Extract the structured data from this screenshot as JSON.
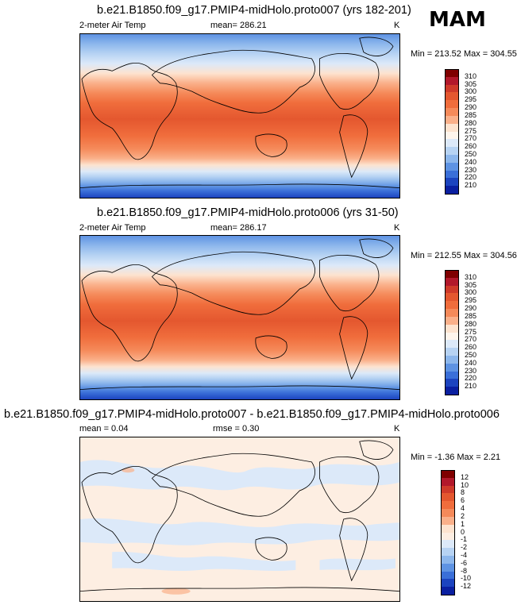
{
  "season": "MAM",
  "chart_data": [
    {
      "type": "heatmap",
      "title": "b.e21.B1850.f09_g17.PMIP4-midHolo.proto007 (yrs 182-201)",
      "variable_label": "2-meter Air Temp",
      "mean_label": "mean= 286.21",
      "units": "K",
      "minmax_label": "Min = 213.52 Max = 304.55",
      "min": 213.52,
      "max": 304.55,
      "colorbar_levels": [
        "310",
        "305",
        "300",
        "295",
        "290",
        "285",
        "280",
        "275",
        "270",
        "260",
        "250",
        "240",
        "230",
        "220",
        "210"
      ],
      "colorbar_colors": [
        "#7f0000",
        "#b2182b",
        "#cf3a2a",
        "#e4572f",
        "#f06d3c",
        "#f58a5a",
        "#fab08a",
        "#fde3cf",
        "#fef5ec",
        "#dce9f9",
        "#b7d3f3",
        "#8db7ec",
        "#5e93e3",
        "#3a6fd8",
        "#1c44bf",
        "#0a1fa0"
      ]
    },
    {
      "type": "heatmap",
      "title": "b.e21.B1850.f09_g17.PMIP4-midHolo.proto006 (yrs 31-50)",
      "variable_label": "2-meter Air Temp",
      "mean_label": "mean= 286.17",
      "units": "K",
      "minmax_label": "Min = 212.55 Max = 304.56",
      "min": 212.55,
      "max": 304.56,
      "colorbar_levels": [
        "310",
        "305",
        "300",
        "295",
        "290",
        "285",
        "280",
        "275",
        "270",
        "260",
        "250",
        "240",
        "230",
        "220",
        "210"
      ],
      "colorbar_colors": [
        "#7f0000",
        "#b2182b",
        "#cf3a2a",
        "#e4572f",
        "#f06d3c",
        "#f58a5a",
        "#fab08a",
        "#fde3cf",
        "#fef5ec",
        "#dce9f9",
        "#b7d3f3",
        "#8db7ec",
        "#5e93e3",
        "#3a6fd8",
        "#1c44bf",
        "#0a1fa0"
      ]
    },
    {
      "type": "heatmap",
      "title": "b.e21.B1850.f09_g17.PMIP4-midHolo.proto007 - b.e21.B1850.f09_g17.PMIP4-midHolo.proto006",
      "mean_label": "mean =   0.04",
      "rmse_label": "rmse =   0.30",
      "units": "K",
      "minmax_label": "Min =  -1.36 Max =   2.21",
      "mean": 0.04,
      "rmse": 0.3,
      "min": -1.36,
      "max": 2.21,
      "colorbar_levels": [
        "12",
        "10",
        "8",
        "6",
        "4",
        "2",
        "1",
        "0",
        "-1",
        "-2",
        "-4",
        "-6",
        "-8",
        "-10",
        "-12"
      ],
      "colorbar_colors": [
        "#7f0000",
        "#b2182b",
        "#cf3a2a",
        "#e4572f",
        "#f06d3c",
        "#f58a5a",
        "#fab08a",
        "#fde3cf",
        "#fdeee2",
        "#dce9f9",
        "#b7d3f3",
        "#8db7ec",
        "#5e93e3",
        "#3a6fd8",
        "#1c44bf",
        "#0a1fa0"
      ]
    }
  ]
}
